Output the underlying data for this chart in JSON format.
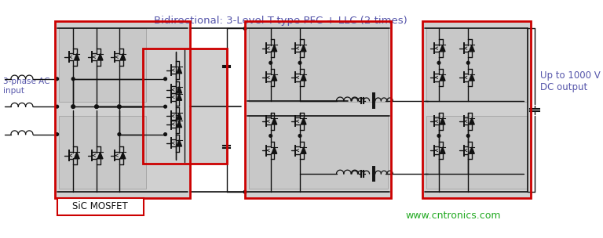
{
  "title": "Bidirectional: 3-Level T-type PFC + LLC (2 times)",
  "title_color": "#5555aa",
  "title_fontsize": 9.5,
  "bg_color": "#ffffff",
  "label_ac_1": "3-phase AC",
  "label_ac_2": "input",
  "label_dc_1": "Up to 1000 V",
  "label_dc_2": "DC output",
  "label_mosfet": "SiC MOSFET",
  "label_web": "www.cntronics.com",
  "web_color": "#22aa22",
  "label_color": "#5555aa",
  "gray_fill": "#d0d0d0",
  "red_border": "#cc0000",
  "line_color": "#111111",
  "figsize": [
    7.68,
    3.04
  ],
  "dpi": 100
}
